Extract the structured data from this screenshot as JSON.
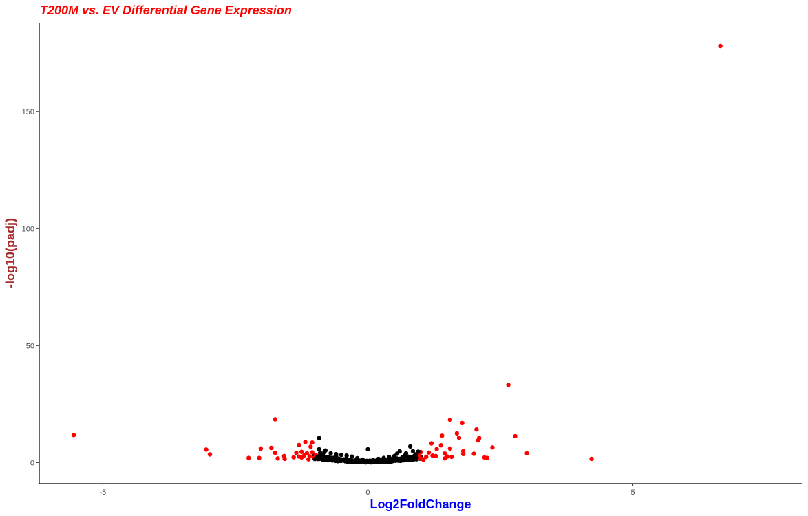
{
  "chart_data": {
    "type": "scatter",
    "title": "T200M vs. EV Differential Gene Expression",
    "xlabel": "Log2FoldChange",
    "ylabel": "-log10(padj)",
    "xlim": [
      -6.2,
      8.2
    ],
    "ylim": [
      -9,
      188
    ],
    "x_ticks": [
      -5,
      0,
      5
    ],
    "y_ticks": [
      0,
      50,
      100,
      150
    ],
    "grid": false,
    "legend": "none",
    "colors": {
      "significant": "#ff0000",
      "not_significant": "#000000"
    },
    "series": [
      {
        "color": "#ff0000",
        "points": [
          [
            6.65,
            178
          ],
          [
            -5.55,
            11.8
          ],
          [
            2.65,
            33.2
          ],
          [
            -1.75,
            18.5
          ],
          [
            1.55,
            18.3
          ],
          [
            1.78,
            16.9
          ],
          [
            2.05,
            14.2
          ],
          [
            2.78,
            11.3
          ],
          [
            1.68,
            12.5
          ],
          [
            1.4,
            11.5
          ],
          [
            2.1,
            10.5
          ],
          [
            2.08,
            9.5
          ],
          [
            1.72,
            10.6
          ],
          [
            -3.05,
            5.6
          ],
          [
            -2.98,
            3.5
          ],
          [
            -2.25,
            2.0
          ],
          [
            -2.05,
            2.0
          ],
          [
            -2.02,
            6.0
          ],
          [
            -1.82,
            6.3
          ],
          [
            -1.75,
            4.2
          ],
          [
            -1.7,
            1.8
          ],
          [
            -1.58,
            2.8
          ],
          [
            -1.57,
            1.6
          ],
          [
            3.0,
            4.0
          ],
          [
            4.22,
            1.6
          ],
          [
            2.35,
            6.5
          ],
          [
            2.25,
            2.0
          ],
          [
            2.2,
            2.2
          ],
          [
            2.0,
            3.8
          ],
          [
            1.8,
            4.9
          ],
          [
            1.8,
            3.7
          ],
          [
            1.55,
            6.0
          ],
          [
            1.5,
            2.6
          ],
          [
            1.58,
            2.5
          ],
          [
            1.45,
            3.9
          ],
          [
            1.45,
            1.8
          ],
          [
            1.38,
            7.4
          ],
          [
            1.3,
            5.8
          ],
          [
            1.28,
            2.8
          ],
          [
            1.2,
            8.2
          ],
          [
            1.22,
            3.0
          ],
          [
            1.15,
            4.3
          ],
          [
            1.1,
            2.5
          ],
          [
            1.05,
            1.2
          ],
          [
            1.0,
            4.5
          ],
          [
            1.02,
            1.6
          ],
          [
            0.97,
            3.2
          ],
          [
            0.96,
            2.1
          ],
          [
            -1.18,
            8.8
          ],
          [
            -1.05,
            8.6
          ],
          [
            -1.08,
            6.8
          ],
          [
            -1.3,
            7.5
          ],
          [
            -1.35,
            4.2
          ],
          [
            -1.25,
            4.6
          ],
          [
            -1.2,
            3.1
          ],
          [
            -1.25,
            2.2
          ],
          [
            -1.15,
            4.0
          ],
          [
            -1.1,
            2.7
          ],
          [
            -1.05,
            4.4
          ],
          [
            -1.02,
            2.0
          ],
          [
            -0.98,
            3.3
          ],
          [
            -1.12,
            1.4
          ],
          [
            -1.3,
            2.6
          ],
          [
            -1.4,
            2.3
          ]
        ]
      },
      {
        "color": "#000000",
        "points": [
          [
            -0.92,
            10.5
          ],
          [
            0.8,
            6.9
          ],
          [
            0.0,
            5.7
          ],
          [
            -0.92,
            5.7
          ],
          [
            -0.8,
            5.2
          ],
          [
            0.95,
            4.7
          ],
          [
            0.6,
            4.8
          ],
          [
            0.85,
            4.9
          ],
          [
            0.55,
            3.8
          ],
          [
            0.7,
            3.1
          ],
          [
            -0.7,
            4.0
          ],
          [
            -0.6,
            3.6
          ],
          [
            -0.5,
            3.3
          ],
          [
            -0.4,
            3.0
          ],
          [
            -0.3,
            2.6
          ],
          [
            -0.2,
            1.9
          ],
          [
            -0.1,
            1.3
          ],
          [
            0.1,
            1.1
          ],
          [
            0.2,
            1.6
          ],
          [
            0.3,
            2.0
          ],
          [
            0.4,
            2.4
          ],
          [
            0.5,
            2.8
          ],
          [
            0.65,
            2.2
          ],
          [
            0.75,
            2.6
          ],
          [
            0.9,
            3.5
          ],
          [
            -0.85,
            3.3
          ],
          [
            -0.75,
            2.5
          ],
          [
            -0.65,
            2.0
          ],
          [
            -0.95,
            2.3
          ],
          [
            -1.0,
            1.5
          ],
          [
            -0.55,
            1.7
          ],
          [
            -0.45,
            1.4
          ],
          [
            -0.35,
            1.1
          ],
          [
            -0.25,
            0.9
          ],
          [
            -0.15,
            0.6
          ],
          [
            -0.05,
            0.3
          ],
          [
            0.05,
            0.3
          ],
          [
            0.15,
            0.6
          ],
          [
            0.25,
            0.9
          ],
          [
            0.35,
            1.2
          ],
          [
            0.45,
            1.5
          ],
          [
            0.55,
            1.8
          ],
          [
            0.65,
            1.4
          ],
          [
            0.8,
            1.9
          ],
          [
            0.92,
            2.0
          ],
          [
            -0.9,
            4.2
          ],
          [
            -0.82,
            4.6
          ],
          [
            0.72,
            4.0
          ],
          [
            0.88,
            3.0
          ],
          [
            -0.6,
            2.8
          ]
        ]
      }
    ]
  }
}
